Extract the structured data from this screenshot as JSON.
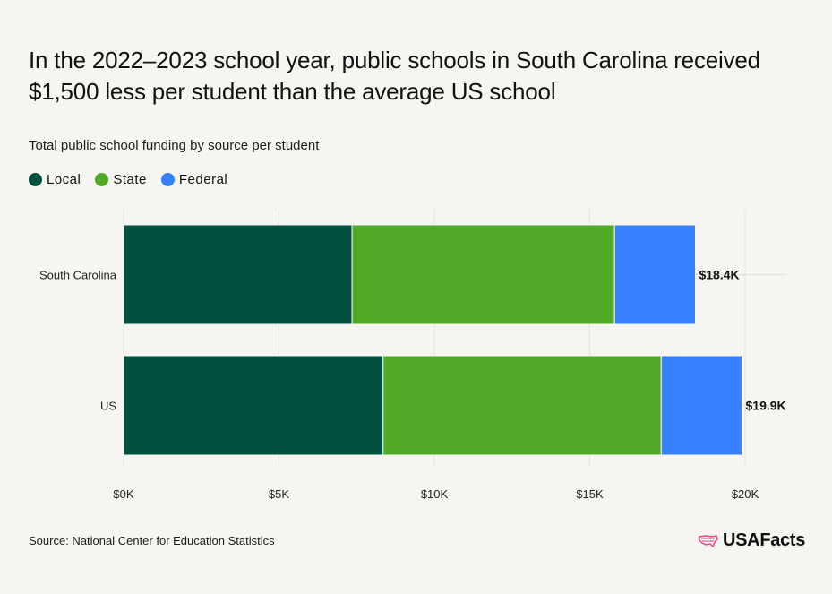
{
  "title": "In the 2022–2023 school year, public schools in South Carolina received $1,500 less per student than the average US school",
  "subtitle": "Total public school funding by source per student",
  "legend": [
    {
      "label": "Local",
      "color": "#00513f"
    },
    {
      "label": "State",
      "color": "#52a928"
    },
    {
      "label": "Federal",
      "color": "#3581ff"
    }
  ],
  "source": "Source: National Center for Education Statistics",
  "brand": "USAFacts",
  "chart_data": {
    "type": "bar",
    "orientation": "horizontal",
    "stacked": true,
    "categories": [
      "South Carolina",
      "US"
    ],
    "series": [
      {
        "name": "Local",
        "values": [
          7350,
          8350
        ]
      },
      {
        "name": "State",
        "values": [
          8450,
          8950
        ]
      },
      {
        "name": "Federal",
        "values": [
          2600,
          2600
        ]
      }
    ],
    "totals": [
      18400,
      19900
    ],
    "total_labels": [
      "$18.4K",
      "$19.9K"
    ],
    "xlim": [
      0,
      20000
    ],
    "xticks": [
      0,
      5000,
      10000,
      15000,
      20000
    ],
    "xtick_labels": [
      "$0K",
      "$5K",
      "$10K",
      "$15K",
      "$20K"
    ],
    "grid": "vertical"
  }
}
